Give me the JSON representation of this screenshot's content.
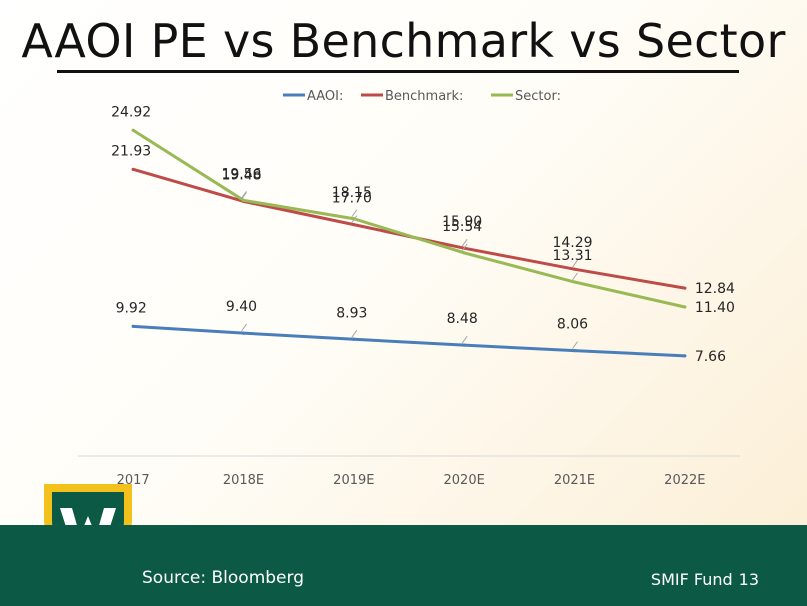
{
  "slide": {
    "title": "AAOI PE vs Benchmark vs Sector",
    "source": "Source: Bloomberg",
    "fund_label": "SMIF Fund",
    "page_number": "13"
  },
  "colors": {
    "aaoi": "#4a7ebb",
    "benchmark": "#be4b48",
    "sector": "#98b954",
    "footer": "#0c5a45",
    "logo_gold": "#f3c11c"
  },
  "chart_data": {
    "type": "line",
    "title": "",
    "xlabel": "",
    "ylabel": "",
    "categories": [
      "2017",
      "2018E",
      "2019E",
      "2020E",
      "2021E",
      "2022E"
    ],
    "ylim": [
      0,
      28
    ],
    "grid": false,
    "legend_position": "top",
    "series": [
      {
        "name": "AAOI:",
        "values": [
          9.92,
          9.4,
          8.93,
          8.48,
          8.06,
          7.66
        ],
        "labels": [
          "9.92",
          "9.40",
          "8.93",
          "8.48",
          "8.06",
          "7.66"
        ]
      },
      {
        "name": "Benchmark:",
        "values": [
          21.93,
          19.48,
          17.7,
          15.9,
          14.29,
          12.84
        ],
        "labels": [
          "21.93",
          "19.48",
          "17.70",
          "15.90",
          "14.29",
          "12.84"
        ]
      },
      {
        "name": "Sector:",
        "values": [
          24.92,
          19.56,
          18.15,
          15.54,
          13.31,
          11.4
        ],
        "labels": [
          "24.92",
          "19.56",
          "18.15",
          "15.54",
          "13.31",
          "11.40"
        ]
      }
    ]
  }
}
